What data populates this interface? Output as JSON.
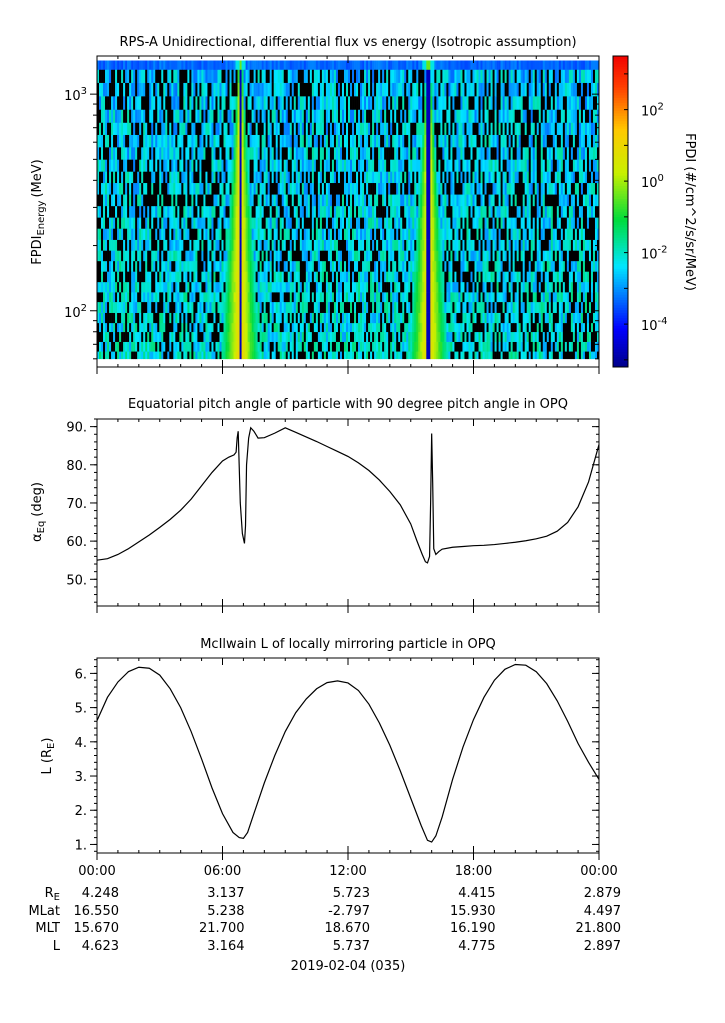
{
  "figure": {
    "date_label": "2019-02-04 (035)"
  },
  "chart_data": [
    {
      "type": "heatmap",
      "title": "RPS-A Unidirectional, differential flux vs energy (Isotropic assumption)",
      "ylabel": {
        "main": "FPDI",
        "sub": "Energy",
        "unit": "(MeV)"
      },
      "y_scale": "log",
      "ylim": [
        55,
        1500
      ],
      "y_ticks": [
        {
          "value": 100,
          "base": "10",
          "exp": "2"
        },
        {
          "value": 1000,
          "base": "10",
          "exp": "3"
        }
      ],
      "xlim_hours": [
        0,
        24
      ],
      "energy_bins_mev": [
        60,
        65,
        72,
        80,
        88,
        98,
        110,
        122,
        136,
        152,
        170,
        190,
        213,
        240,
        270,
        305,
        345,
        390,
        440,
        500,
        570,
        650,
        740,
        850,
        980,
        1130,
        1300
      ],
      "peaks_hours": [
        6.85,
        15.85
      ],
      "colorbar": {
        "label": "FPDI (#/cm^2/s/sr/MeV)",
        "scale": "log",
        "range_log10": [
          -5.2,
          3.5
        ],
        "ticks": [
          {
            "value": 100,
            "base": "10",
            "exp": "2"
          },
          {
            "value": 1,
            "base": "10",
            "exp": "0"
          },
          {
            "value": 0.01,
            "base": "10",
            "exp": "-2"
          },
          {
            "value": 0.0001,
            "base": "10",
            "exp": "-4"
          }
        ]
      }
    },
    {
      "type": "line",
      "title": "Equatorial pitch angle of particle with 90 degree pitch angle in OPQ",
      "ylabel": {
        "main": "α",
        "sub": "Eq",
        "unit": "(deg)"
      },
      "ylim": [
        43,
        92
      ],
      "y_ticks": [
        "50.",
        "60.",
        "70.",
        "80.",
        "90."
      ],
      "xlim_hours": [
        0,
        24
      ],
      "x_hours": [
        0,
        0.5,
        1.0,
        1.5,
        2.0,
        2.5,
        3.0,
        3.5,
        4.0,
        4.5,
        5.0,
        5.5,
        6.0,
        6.3,
        6.55,
        6.65,
        6.7,
        6.75,
        6.85,
        6.95,
        7.05,
        7.1,
        7.15,
        7.25,
        7.35,
        7.5,
        7.7,
        8.0,
        8.5,
        9.0,
        9.5,
        10.0,
        10.5,
        11.0,
        11.5,
        12.0,
        12.5,
        13.0,
        13.5,
        14.0,
        14.5,
        15.0,
        15.3,
        15.55,
        15.7,
        15.8,
        15.9,
        15.95,
        16.0,
        16.05,
        16.1,
        16.2,
        16.35,
        16.5,
        17.0,
        17.5,
        18.0,
        18.5,
        19.0,
        19.5,
        20.0,
        20.5,
        21.0,
        21.5,
        22.0,
        22.5,
        23.0,
        23.5,
        24.0
      ],
      "y": [
        55.0,
        55.4,
        56.5,
        58.0,
        59.8,
        61.6,
        63.6,
        65.7,
        68.1,
        71.0,
        74.5,
        78.0,
        81.0,
        82.0,
        82.6,
        83.3,
        87.0,
        88.8,
        70.0,
        62.0,
        59.4,
        64.0,
        80.0,
        87.0,
        89.7,
        88.8,
        87.0,
        87.1,
        88.3,
        89.7,
        88.5,
        87.3,
        86.1,
        84.8,
        83.5,
        82.2,
        80.5,
        78.5,
        76.0,
        73.0,
        69.5,
        64.5,
        60.0,
        56.5,
        54.6,
        54.3,
        56.0,
        70.0,
        88.2,
        75.0,
        58.0,
        56.5,
        57.3,
        57.9,
        58.4,
        58.6,
        58.8,
        58.9,
        59.1,
        59.4,
        59.7,
        60.1,
        60.6,
        61.3,
        62.6,
        64.9,
        69.0,
        75.5,
        85.3
      ]
    },
    {
      "type": "line",
      "title": "McIlwain L of locally mirroring particle in OPQ",
      "ylabel": {
        "main": "L (R",
        "sub": "E",
        "unit": ")"
      },
      "ylim": [
        0.75,
        6.45
      ],
      "y_ticks": [
        "1.",
        "2.",
        "3.",
        "4.",
        "5.",
        "6."
      ],
      "xlim_hours": [
        0,
        24
      ],
      "x_hours": [
        0,
        0.5,
        1.0,
        1.5,
        2.0,
        2.5,
        3.0,
        3.5,
        4.0,
        4.5,
        5.0,
        5.5,
        6.0,
        6.5,
        6.8,
        7.0,
        7.2,
        7.5,
        8.0,
        8.5,
        9.0,
        9.5,
        10.0,
        10.5,
        11.0,
        11.5,
        12.0,
        12.5,
        13.0,
        13.5,
        14.0,
        14.5,
        15.0,
        15.5,
        15.8,
        16.0,
        16.2,
        16.5,
        17.0,
        17.5,
        18.0,
        18.5,
        19.0,
        19.5,
        20.0,
        20.5,
        21.0,
        21.5,
        22.0,
        22.5,
        23.0,
        23.5,
        24.0
      ],
      "y": [
        4.62,
        5.3,
        5.75,
        6.05,
        6.18,
        6.15,
        5.95,
        5.55,
        5.0,
        4.3,
        3.5,
        2.65,
        1.9,
        1.35,
        1.2,
        1.18,
        1.35,
        1.9,
        2.8,
        3.6,
        4.3,
        4.85,
        5.25,
        5.55,
        5.73,
        5.78,
        5.72,
        5.5,
        5.1,
        4.55,
        3.9,
        3.15,
        2.35,
        1.55,
        1.12,
        1.07,
        1.25,
        1.8,
        2.9,
        3.85,
        4.65,
        5.3,
        5.8,
        6.12,
        6.26,
        6.24,
        6.05,
        5.7,
        5.2,
        4.6,
        3.95,
        3.4,
        2.9
      ]
    }
  ],
  "x_axis": {
    "tick_hours": [
      0,
      6,
      12,
      18,
      24
    ],
    "tick_labels": [
      "00:00",
      "06:00",
      "12:00",
      "18:00",
      "00:00"
    ]
  },
  "ephemeris": {
    "rows": [
      {
        "label": "R",
        "label_sub": "E",
        "values": [
          "4.248",
          "3.137",
          "5.723",
          "4.415",
          "2.879"
        ]
      },
      {
        "label": "MLat",
        "label_sub": "",
        "values": [
          "16.550",
          "5.238",
          "-2.797",
          "15.930",
          "4.497"
        ]
      },
      {
        "label": "MLT",
        "label_sub": "",
        "values": [
          "15.670",
          "21.700",
          "18.670",
          "16.190",
          "21.800"
        ]
      },
      {
        "label": "L",
        "label_sub": "",
        "values": [
          "4.623",
          "3.164",
          "5.737",
          "4.775",
          "2.897"
        ]
      }
    ]
  },
  "colors": {
    "axis": "#000000",
    "line": "#000000",
    "background": "#ffffff"
  }
}
